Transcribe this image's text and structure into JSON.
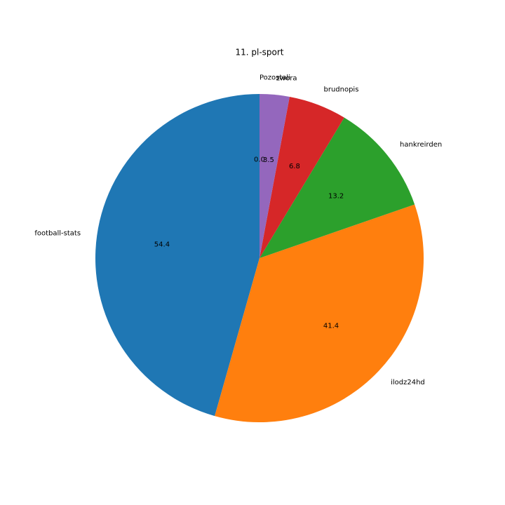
{
  "chart_data": {
    "type": "pie",
    "title": "11. pl-sport",
    "categories": [
      "football-stats",
      "ilodz24hd",
      "hankreirden",
      "brudnopis",
      "zwora",
      "Pozostali"
    ],
    "values": [
      54.4,
      41.4,
      13.2,
      6.8,
      3.5,
      0.0
    ],
    "value_labels": [
      "54.4",
      "41.4",
      "13.2",
      "6.8",
      "3.5",
      "0.0"
    ],
    "colors": [
      "#1f77b4",
      "#ff7f0e",
      "#2ca02c",
      "#d62728",
      "#9467bd",
      "#8c564b"
    ],
    "start_angle": 90,
    "counterclockwise": true
  }
}
